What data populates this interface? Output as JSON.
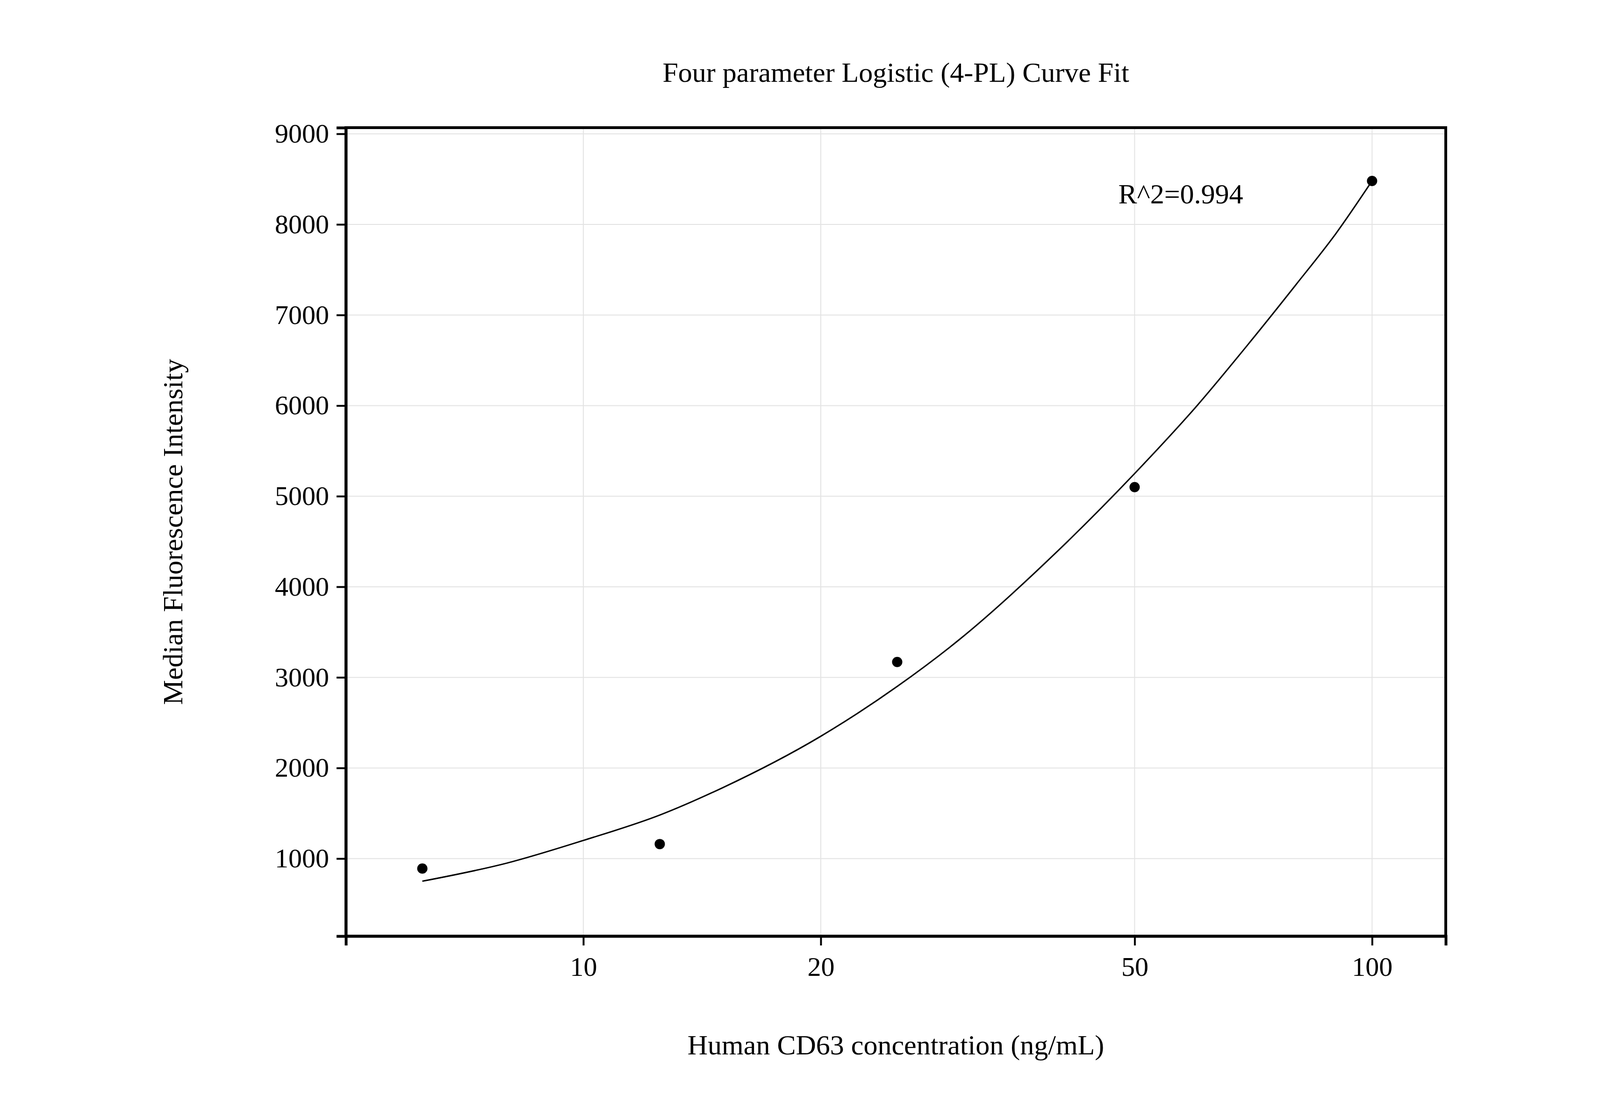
{
  "chart_data": {
    "type": "scatter",
    "title": "Four parameter Logistic (4-PL) Curve Fit",
    "x_label": "Human CD63 concentration (ng/mL)",
    "y_label": "Median Fluorescence Intensity",
    "annotation": "R^2=0.994",
    "log": "x",
    "grid": true,
    "xlim": [
      5,
      124
    ],
    "ylim": [
      144,
      9068
    ],
    "xticks": [
      10,
      20,
      50,
      100
    ],
    "yticks": [
      1000,
      2000,
      3000,
      4000,
      5000,
      6000,
      7000,
      8000,
      9000
    ],
    "series": [
      {
        "type": "scatter",
        "marker": "circle",
        "color": "#000000",
        "x": [
          6.25,
          12.5,
          25,
          50,
          100
        ],
        "values": [
          890,
          1160,
          3170,
          5100,
          8480
        ]
      },
      {
        "type": "line",
        "line_style": "solid",
        "color": "#000000",
        "x": [
          6.25,
          8,
          10,
          12.5,
          15,
          20,
          25,
          30,
          40,
          50,
          60,
          70,
          80,
          90,
          100
        ],
        "values": [
          750,
          950,
          1200,
          1480,
          1780,
          2350,
          2900,
          3420,
          4400,
          5250,
          6000,
          6700,
          7330,
          7900,
          8480
        ]
      }
    ]
  }
}
